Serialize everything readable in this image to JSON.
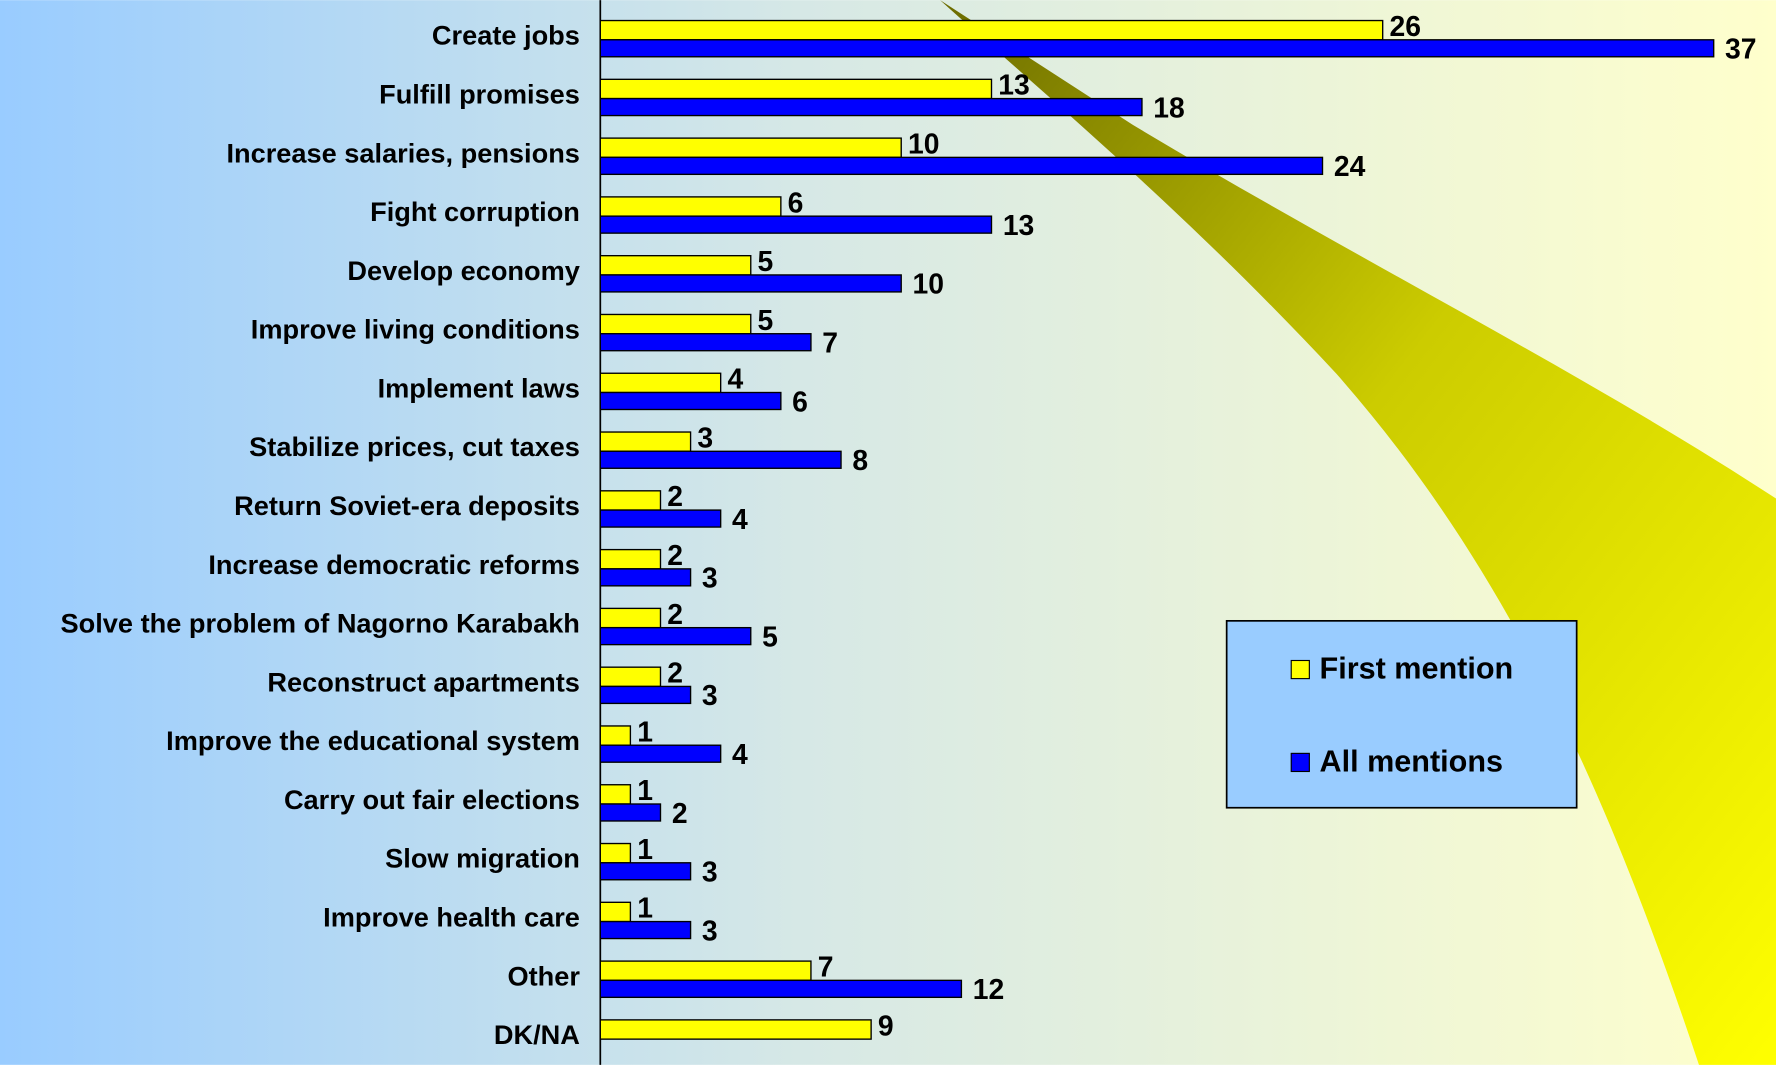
{
  "chart_data": {
    "type": "bar",
    "orientation": "horizontal",
    "categories": [
      "Create jobs",
      "Fulfill promises",
      "Increase salaries, pensions",
      "Fight corruption",
      "Develop economy",
      "Improve living conditions",
      "Implement laws",
      "Stabilize prices, cut taxes",
      "Return Soviet-era deposits",
      "Increase democratic reforms",
      "Solve the problem of Nagorno Karabakh",
      "Reconstruct apartments",
      "Improve the educational system",
      "Carry out fair elections",
      "Slow migration",
      "Improve health care",
      "Other",
      "DK/NA"
    ],
    "series": [
      {
        "name": "First mention",
        "color": "#ffff00",
        "values": [
          26,
          13,
          10,
          6,
          5,
          5,
          4,
          3,
          2,
          2,
          2,
          2,
          1,
          1,
          1,
          1,
          7,
          9
        ]
      },
      {
        "name": "All mentions",
        "color": "#0000ff",
        "values": [
          37,
          18,
          24,
          13,
          10,
          7,
          6,
          8,
          4,
          3,
          5,
          3,
          4,
          2,
          3,
          3,
          12,
          null
        ]
      }
    ]
  }
}
